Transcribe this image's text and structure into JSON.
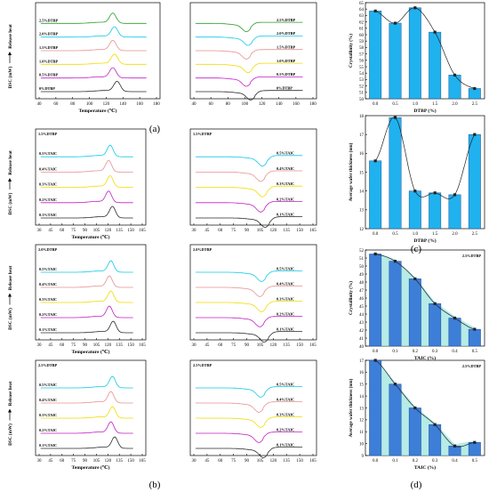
{
  "colors": {
    "curve_palette": [
      "#2b2b2b",
      "#c21ec2",
      "#f0dc00",
      "#e89090",
      "#10c8e8",
      "#2a9a2a",
      "#3a78c8"
    ],
    "bar_fill": "#1fb2ee",
    "bar_fill_d": "#3d7ed8",
    "teal_fill": "#9ee4df"
  },
  "tags": {
    "a": "(a)",
    "b": "(b)",
    "c": "(c)",
    "d": "(d)"
  },
  "chart_data": [
    {
      "id": "a1",
      "type": "line",
      "panel": "a",
      "kind": "melting",
      "peak": 130,
      "ylabel": "DSC (mW)",
      "arrow_label": "Release heat",
      "xlabel": "Temperature (℃)",
      "xlim": [
        40,
        180
      ],
      "xticks": [
        "40",
        "60",
        "80",
        "100",
        "120",
        "140",
        "160",
        "180"
      ],
      "series": [
        {
          "name": "0%DTBP"
        },
        {
          "name": "0.5%DTBP"
        },
        {
          "name": "1.0%DTBP"
        },
        {
          "name": "1.5%DTBP"
        },
        {
          "name": "2.0%DTBP"
        },
        {
          "name": "2.5%DTBP"
        }
      ]
    },
    {
      "id": "a2",
      "type": "line",
      "panel": "a",
      "kind": "crystallization",
      "peak": 104,
      "xlim": [
        40,
        180
      ],
      "xticks": [
        "40",
        "60",
        "80",
        "100",
        "120",
        "140",
        "160",
        "180"
      ],
      "series": [
        {
          "name": "0%DTBP"
        },
        {
          "name": "0.5%DTBP"
        },
        {
          "name": "1.0%DTBP"
        },
        {
          "name": "1.5%DTBP"
        },
        {
          "name": "2.0%DTBP"
        },
        {
          "name": "2.5%DTBP"
        }
      ]
    },
    {
      "id": "a3",
      "type": "bar",
      "panel": "a",
      "xlabel": "DTBP (%)",
      "ylabel": "Crystallinity (%)",
      "categories": [
        "0.0",
        "0.5",
        "1.0",
        "1.5",
        "2.0",
        "2.5"
      ],
      "values": [
        63.7,
        61.8,
        64.2,
        60.4,
        53.7,
        51.6
      ],
      "ylim": [
        50,
        65
      ],
      "yticks": [
        "50",
        "51",
        "52",
        "53",
        "54",
        "55",
        "56",
        "57",
        "58",
        "59",
        "60",
        "61",
        "62",
        "63",
        "64",
        "65"
      ]
    },
    {
      "id": "b1",
      "type": "line",
      "panel": "b",
      "kind": "melting",
      "peak": 123,
      "title": "1.5%DTBP",
      "ylabel": "DSC (mW)",
      "arrow_label": "Release heat",
      "xlabel": "Temperature (℃)",
      "xlim": [
        30,
        165
      ],
      "xticks": [
        "30",
        "45",
        "60",
        "75",
        "90",
        "105",
        "120",
        "135",
        "150",
        "165"
      ],
      "series": [
        {
          "name": "0.1%TAIC"
        },
        {
          "name": "0.2%TAIC"
        },
        {
          "name": "0.3%TAIC"
        },
        {
          "name": "0.4%TAIC"
        },
        {
          "name": "0.5%TAIC"
        }
      ]
    },
    {
      "id": "b2",
      "type": "line",
      "panel": "b",
      "kind": "crystallization",
      "peak": 108,
      "title": "1.5%DTBP",
      "xlim": [
        30,
        165
      ],
      "xticks": [
        "30",
        "45",
        "60",
        "75",
        "90",
        "105",
        "120",
        "135",
        "150",
        "165"
      ],
      "series": [
        {
          "name": "0.1%TAIC"
        },
        {
          "name": "0.2%TAIC"
        },
        {
          "name": "0.3%TAIC"
        },
        {
          "name": "0.4%TAIC"
        },
        {
          "name": "0.5%TAIC"
        }
      ]
    },
    {
      "id": "c1",
      "type": "bar",
      "panel": "c",
      "xlabel": "DTBP (%)",
      "ylabel": "Average wafer thickness (nm)",
      "categories": [
        "0.0",
        "0.5",
        "1.0",
        "1.5",
        "2.0",
        "2.5"
      ],
      "values": [
        15.6,
        17.9,
        14.0,
        13.9,
        13.8,
        17.0
      ],
      "ylim": [
        12,
        18
      ],
      "yticks": [
        "12",
        "13",
        "14",
        "15",
        "16",
        "17",
        "18"
      ]
    },
    {
      "id": "b3",
      "type": "line",
      "panel": "b",
      "kind": "melting",
      "peak": 124,
      "title": "2.0%DTBP",
      "ylabel": "DSC (mW)",
      "arrow_label": "Release heat",
      "xlabel": "Temperature (℃)",
      "xlim": [
        30,
        165
      ],
      "xticks": [
        "30",
        "45",
        "60",
        "75",
        "90",
        "105",
        "120",
        "135",
        "150",
        "165"
      ],
      "series": [
        {
          "name": "0.1%TAIC"
        },
        {
          "name": "0.2%TAIC"
        },
        {
          "name": "0.3%TAIC"
        },
        {
          "name": "0.4%TAIC"
        },
        {
          "name": "0.5%TAIC"
        }
      ]
    },
    {
      "id": "b4",
      "type": "line",
      "panel": "b",
      "kind": "crystallization",
      "peak": 107,
      "title": "2.0%DTBP",
      "xlim": [
        30,
        165
      ],
      "xticks": [
        "30",
        "45",
        "60",
        "75",
        "90",
        "105",
        "120",
        "135",
        "150",
        "165"
      ],
      "series": [
        {
          "name": "0.1%TAIC"
        },
        {
          "name": "0.2%TAIC"
        },
        {
          "name": "0.3%TAIC"
        },
        {
          "name": "0.4%TAIC"
        },
        {
          "name": "0.5%TAIC"
        }
      ]
    },
    {
      "id": "d1",
      "type": "bar",
      "panel": "d",
      "xlabel": "TAIC (%)",
      "ylabel": "Crystallinity (%)",
      "title": "2.5%DTBP",
      "categories": [
        "0.0",
        "0.1",
        "0.2",
        "0.3",
        "0.4",
        "0.5"
      ],
      "values": [
        51.5,
        50.6,
        48.4,
        45.3,
        43.5,
        42.1
      ],
      "ylim": [
        40,
        52
      ],
      "yticks": [
        "40",
        "41",
        "42",
        "43",
        "44",
        "45",
        "46",
        "47",
        "48",
        "49",
        "50",
        "51",
        "52"
      ]
    },
    {
      "id": "b5",
      "type": "line",
      "panel": "b",
      "kind": "melting",
      "peak": 126,
      "title": "2.5%DTBP",
      "ylabel": "DSC (mW)",
      "arrow_label": "Release heat",
      "xlabel": "Temperature (℃)",
      "xlim": [
        30,
        165
      ],
      "xticks": [
        "30",
        "45",
        "60",
        "75",
        "90",
        "105",
        "120",
        "135",
        "150",
        "165"
      ],
      "series": [
        {
          "name": "0.1%TAIC"
        },
        {
          "name": "0.2%TAIC"
        },
        {
          "name": "0.3%TAIC"
        },
        {
          "name": "0.4%TAIC"
        },
        {
          "name": "0.5%TAIC"
        }
      ]
    },
    {
      "id": "b6",
      "type": "line",
      "panel": "b",
      "kind": "crystallization",
      "peak": 106,
      "title": "2.5%DTBP",
      "xlim": [
        30,
        165
      ],
      "xticks": [
        "30",
        "45",
        "60",
        "75",
        "90",
        "105",
        "120",
        "135",
        "150",
        "165"
      ],
      "series": [
        {
          "name": "0.1%TAIC"
        },
        {
          "name": "0.2%TAIC"
        },
        {
          "name": "0.3%TAIC"
        },
        {
          "name": "0.4%TAIC"
        },
        {
          "name": "0.5%TAIC"
        }
      ]
    },
    {
      "id": "d2",
      "type": "bar",
      "panel": "d",
      "xlabel": "TAIC (%)",
      "ylabel": "Average wafer thickness (nm)",
      "title": "2.5%DTBP",
      "categories": [
        "0.0",
        "0.1",
        "0.2",
        "0.3",
        "0.4",
        "0.5"
      ],
      "values": [
        17.0,
        15.0,
        13.0,
        11.6,
        9.8,
        10.1
      ],
      "ylim": [
        9,
        17
      ],
      "yticks": [
        "9",
        "10",
        "11",
        "12",
        "13",
        "14",
        "15",
        "16",
        "17"
      ]
    }
  ]
}
